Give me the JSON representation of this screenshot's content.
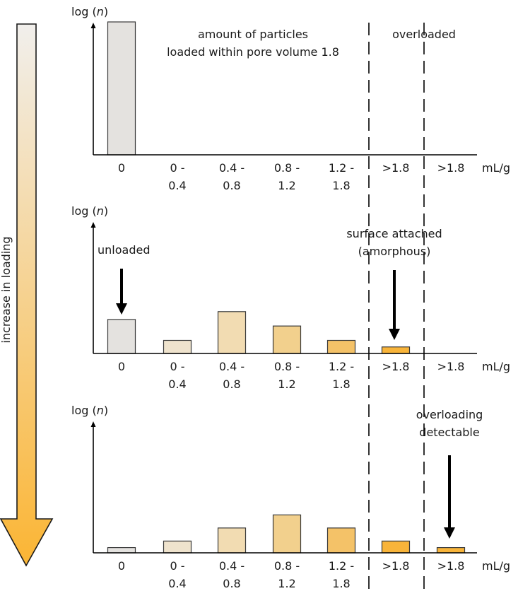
{
  "colors": {
    "arrow_top": "#f1efec",
    "arrow_bottom": "#fbb534",
    "bar_colors": [
      "#e4e2df",
      "#efe3cd",
      "#f2dcb2",
      "#f2d08d",
      "#f4c268",
      "#f8b43a",
      "#f8b43a"
    ],
    "bar_stroke": "#3a3a3a",
    "axis": "#000000"
  },
  "side_arrow": {
    "label": "increase in loading"
  },
  "unit_label": "mL/g",
  "ylabel": {
    "prefix": "log (",
    "var": "n",
    "suffix": ")"
  },
  "category_lines": [
    [
      "0"
    ],
    [
      "0 -",
      "0.4"
    ],
    [
      "0.4 -",
      "0.8"
    ],
    [
      "0.8 -",
      "1.2"
    ],
    [
      "1.2 -",
      "1.8"
    ],
    [
      ">1.8"
    ],
    [
      ">1.8"
    ]
  ],
  "chart_data": [
    {
      "type": "bar",
      "categories": [
        "0",
        "0 - 0.4",
        "0.4 - 0.8",
        "0.8 - 1.2",
        "1.2 - 1.8",
        ">1.8",
        ">1.8"
      ],
      "values": [
        1.0,
        0,
        0,
        0,
        0,
        0,
        0
      ],
      "ylabel": "log (n)",
      "xlabel": "mL/g",
      "annotations": [
        {
          "text": [
            "amount of particles",
            "loaded within pore volume 1.8"
          ],
          "arrow_to": null
        },
        {
          "text": [
            "overloaded"
          ],
          "arrow_to": null
        }
      ]
    },
    {
      "type": "bar",
      "categories": [
        "0",
        "0 - 0.4",
        "0.4 - 0.8",
        "0.8 - 1.2",
        "1.2 - 1.8",
        ">1.8",
        ">1.8"
      ],
      "values": [
        0.26,
        0.1,
        0.32,
        0.21,
        0.1,
        0.05,
        0
      ],
      "ylabel": "log (n)",
      "xlabel": "mL/g",
      "annotations": [
        {
          "text": [
            "unloaded"
          ],
          "arrow_to": 0
        },
        {
          "text": [
            "surface attached",
            "(amorphous)"
          ],
          "arrow_to": 5
        }
      ]
    },
    {
      "type": "bar",
      "categories": [
        "0",
        "0 - 0.4",
        "0.4 - 0.8",
        "0.8 - 1.2",
        "1.2 - 1.8",
        ">1.8",
        ">1.8"
      ],
      "values": [
        0.04,
        0.09,
        0.19,
        0.29,
        0.19,
        0.09,
        0.04
      ],
      "ylabel": "log (n)",
      "xlabel": "mL/g",
      "annotations": [
        {
          "text": [
            "overloading",
            "detectable"
          ],
          "arrow_to": 6
        }
      ]
    }
  ]
}
